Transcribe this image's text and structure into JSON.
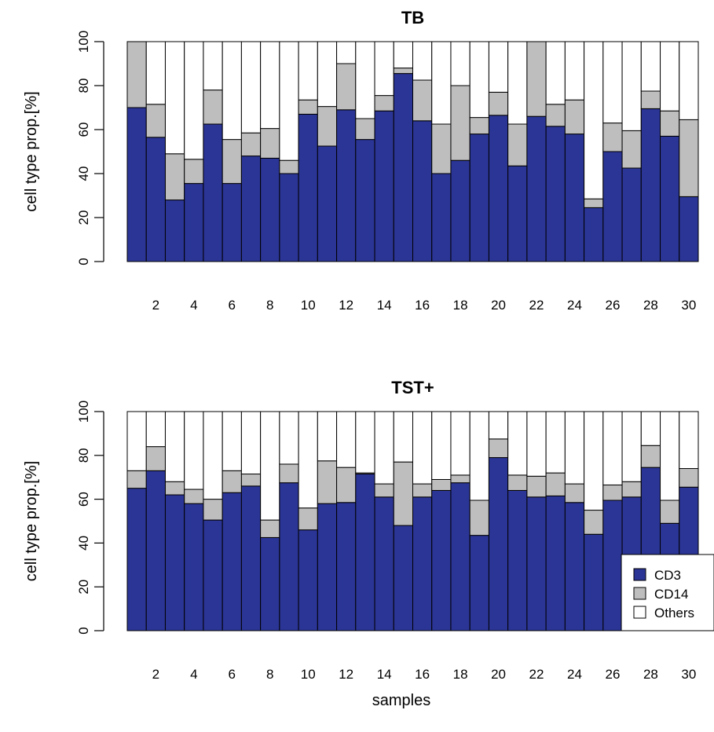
{
  "figure": {
    "xlabel": "samples"
  },
  "legend": {
    "placement": "bottom-right of lower panel",
    "entries": [
      {
        "label": "CD3",
        "color": "#2b3595"
      },
      {
        "label": "CD14",
        "color": "#bebebe"
      },
      {
        "label": "Others",
        "color": "#ffffff"
      }
    ]
  },
  "chart_data": [
    {
      "type": "bar",
      "stacked": true,
      "title": "TB",
      "xlabel": "",
      "ylabel": "cell type prop.[%]",
      "ylim": [
        0,
        100
      ],
      "yticks": [
        0,
        20,
        40,
        60,
        80,
        100
      ],
      "categories": [
        "1",
        "2",
        "3",
        "4",
        "5",
        "6",
        "7",
        "8",
        "9",
        "10",
        "11",
        "12",
        "13",
        "14",
        "15",
        "16",
        "17",
        "18",
        "19",
        "20",
        "21",
        "22",
        "23",
        "24",
        "25",
        "26",
        "27",
        "28",
        "29",
        "30"
      ],
      "xtick_labels": [
        "2",
        "4",
        "6",
        "8",
        "10",
        "12",
        "14",
        "16",
        "18",
        "20",
        "22",
        "24",
        "26",
        "28",
        "30"
      ],
      "series": [
        {
          "name": "CD3",
          "color": "#2b3595",
          "values": [
            70,
            56.5,
            28,
            35.5,
            62.5,
            35.5,
            48,
            47,
            40,
            67,
            52.5,
            69,
            55.5,
            68.5,
            85.5,
            64,
            40,
            46,
            58,
            66.5,
            43.5,
            66,
            61.5,
            58,
            24.5,
            50,
            42.5,
            69.5,
            57,
            29.5
          ]
        },
        {
          "name": "CD14",
          "color": "#bebebe",
          "values": [
            30,
            15,
            21,
            11,
            15.5,
            20,
            10.5,
            13.5,
            6,
            6.5,
            18,
            21,
            9.5,
            7,
            2.5,
            18.5,
            22.5,
            34,
            7.5,
            10.5,
            19,
            34,
            10,
            15.5,
            4,
            13,
            17,
            8,
            11.5,
            35
          ]
        },
        {
          "name": "Others",
          "color": "#ffffff",
          "values": [
            0,
            28.5,
            51,
            53.5,
            22,
            44.5,
            41.5,
            39.5,
            54,
            26.5,
            29.5,
            10,
            35,
            24.5,
            12,
            17.5,
            37.5,
            20,
            34.5,
            23,
            37.5,
            0,
            28.5,
            26.5,
            71.5,
            37,
            40.5,
            22.5,
            31.5,
            35.5
          ]
        }
      ]
    },
    {
      "type": "bar",
      "stacked": true,
      "title": "TST+",
      "xlabel": "samples",
      "ylabel": "cell type prop.[%]",
      "ylim": [
        0,
        100
      ],
      "yticks": [
        0,
        20,
        40,
        60,
        80,
        100
      ],
      "categories": [
        "1",
        "2",
        "3",
        "4",
        "5",
        "6",
        "7",
        "8",
        "9",
        "10",
        "11",
        "12",
        "13",
        "14",
        "15",
        "16",
        "17",
        "18",
        "19",
        "20",
        "21",
        "22",
        "23",
        "24",
        "25",
        "26",
        "27",
        "28",
        "29",
        "30"
      ],
      "xtick_labels": [
        "2",
        "4",
        "6",
        "8",
        "10",
        "12",
        "14",
        "16",
        "18",
        "20",
        "22",
        "24",
        "26",
        "28",
        "30"
      ],
      "series": [
        {
          "name": "CD3",
          "color": "#2b3595",
          "values": [
            65,
            73,
            62,
            58,
            50.5,
            63,
            66,
            42.5,
            67.5,
            46,
            58,
            58.5,
            71.5,
            61,
            48,
            61,
            64,
            67.5,
            43.5,
            79,
            64,
            61,
            61.5,
            58.5,
            44,
            59.5,
            61,
            74.5,
            49,
            65.5
          ]
        },
        {
          "name": "CD14",
          "color": "#bebebe",
          "values": [
            8,
            11,
            6,
            6.5,
            9.5,
            10,
            5.5,
            8,
            8.5,
            10,
            19.5,
            16,
            0.5,
            6,
            29,
            6,
            5,
            3.5,
            16,
            8.5,
            7,
            9.5,
            10.5,
            8.5,
            11,
            7,
            7,
            10,
            10.5,
            8.5
          ]
        },
        {
          "name": "Others",
          "color": "#ffffff",
          "values": [
            27,
            16,
            32,
            35.5,
            40,
            27,
            28.5,
            49.5,
            24,
            44,
            22.5,
            25.5,
            28,
            33,
            23,
            33,
            31,
            29,
            40.5,
            12.5,
            29,
            29.5,
            28,
            33,
            45,
            33.5,
            32,
            15.5,
            40.5,
            26
          ]
        }
      ]
    }
  ]
}
